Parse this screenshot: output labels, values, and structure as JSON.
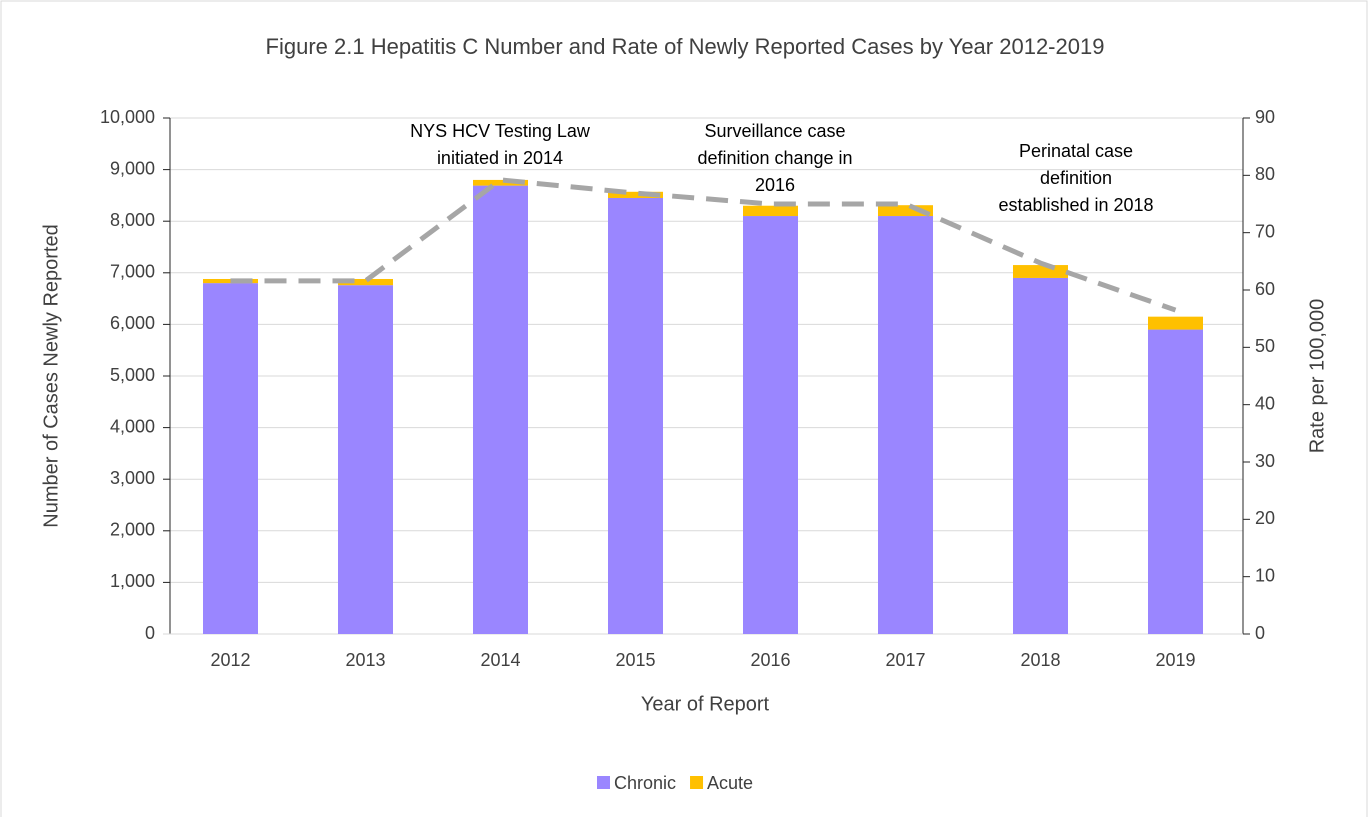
{
  "chart_data": {
    "type": "bar",
    "title": "Figure 2.1 Hepatitis C Number and Rate of Newly Reported Cases by Year 2012-2019",
    "x_label": "Year of Report",
    "y_label": "Number of Cases Newly Reported",
    "y2_label": "Rate per 100,000",
    "categories": [
      "2012",
      "2013",
      "2014",
      "2015",
      "2016",
      "2017",
      "2018",
      "2019"
    ],
    "stacked": true,
    "series": [
      {
        "name": "Chronic",
        "color": "#9a86ff",
        "values": [
          6800,
          6760,
          8690,
          8450,
          8100,
          8100,
          6900,
          5900
        ]
      },
      {
        "name": "Acute",
        "color": "#ffc000",
        "values": [
          80,
          120,
          110,
          120,
          200,
          210,
          250,
          250
        ]
      },
      {
        "type": "line",
        "axis": "y2",
        "color": "#a6a6a6",
        "dashed": true,
        "values": [
          61.6,
          61.6,
          79.2,
          76.9,
          75.0,
          75.0,
          64.7,
          56.5
        ]
      }
    ],
    "ylim": [
      0,
      10000
    ],
    "yticks": [
      0,
      {
        "value": 1000,
        "label": "1,000"
      },
      {
        "value": 2000,
        "label": "2,000"
      },
      {
        "value": 3000,
        "label": "3,000"
      },
      {
        "value": 4000,
        "label": "4,000"
      },
      {
        "value": 5000,
        "label": "5,000"
      },
      {
        "value": 6000,
        "label": "6,000"
      },
      {
        "value": 7000,
        "label": "7,000"
      },
      {
        "value": 8000,
        "label": "8,000"
      },
      {
        "value": 9000,
        "label": "9,000"
      },
      {
        "value": 10000,
        "label": "10,000"
      }
    ],
    "y2lim": [
      0,
      90
    ],
    "y2ticks": [
      0,
      10,
      20,
      30,
      40,
      50,
      60,
      70,
      80,
      90
    ],
    "grid": true,
    "legend": "bottom",
    "annotations": [
      {
        "lines": [
          "NYS HCV Testing Law",
          "initiated in 2014"
        ]
      },
      {
        "lines": [
          "Surveillance case",
          "definition change in",
          "2016"
        ]
      },
      {
        "lines": [
          "Perinatal case",
          "definition",
          "established in 2018"
        ]
      }
    ]
  }
}
